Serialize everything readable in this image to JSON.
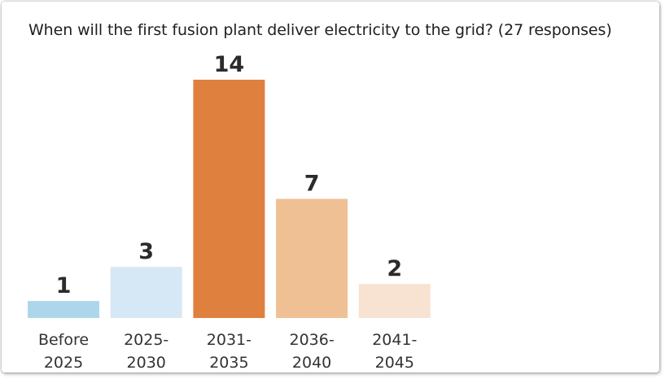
{
  "chart_data": {
    "type": "bar",
    "title": "When will the first fusion plant deliver electricity to the grid? (27 responses)",
    "categories": [
      [
        "Before",
        "2025"
      ],
      [
        "2025-",
        "2030"
      ],
      [
        "2031-",
        "2035"
      ],
      [
        "2036-",
        "2040"
      ],
      [
        "2041-",
        "2045"
      ]
    ],
    "values": [
      1,
      3,
      14,
      7,
      2
    ],
    "colors": [
      "#acd7ea",
      "#d6e8f5",
      "#e0803e",
      "#f0c095",
      "#f8e3d3"
    ],
    "ylim": [
      0,
      14
    ],
    "grid": false,
    "legend": "none"
  }
}
